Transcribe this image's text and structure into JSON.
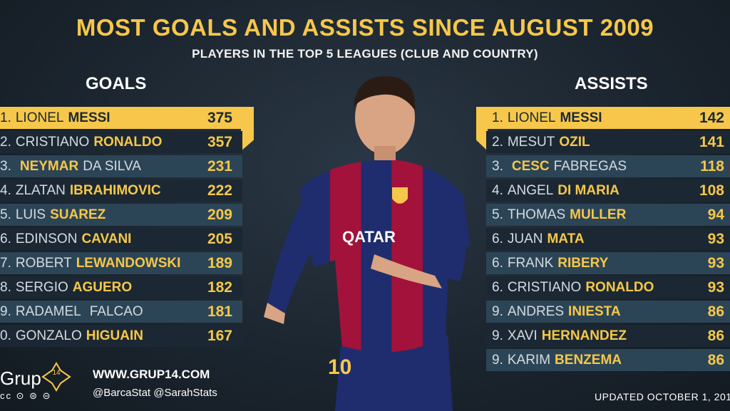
{
  "title": "MOST GOALS AND ASSISTS SINCE AUGUST 2009",
  "subtitle": "PLAYERS IN THE TOP 5 LEAGUES (CLUB AND COUNTRY)",
  "goals_heading": "GOALS",
  "assists_heading": "ASSISTS",
  "goals": [
    {
      "rank": "1.",
      "first": "LIONEL",
      "last": "MESSI",
      "value": "375"
    },
    {
      "rank": "2.",
      "first": "CRISTIANO",
      "last": "RONALDO",
      "value": "357"
    },
    {
      "rank": "3.",
      "first": "",
      "last": "NEYMAR",
      "suffix": "DA SILVA",
      "value": "231"
    },
    {
      "rank": "4.",
      "first": "ZLATAN",
      "last": "IBRAHIMOVIC",
      "value": "222"
    },
    {
      "rank": "5.",
      "first": "LUIS",
      "last": "SUAREZ",
      "value": "209"
    },
    {
      "rank": "6.",
      "first": "EDINSON",
      "last": "CAVANI",
      "value": "205"
    },
    {
      "rank": "7.",
      "first": "ROBERT",
      "last": "LEWANDOWSKI",
      "value": "189"
    },
    {
      "rank": "8.",
      "first": "SERGIO",
      "last": "AGUERO",
      "value": "182"
    },
    {
      "rank": "9.",
      "first": "RADAMEL",
      "last": "",
      "suffix": "FALCAO",
      "value": "181"
    },
    {
      "rank": "0.",
      "first": "GONZALO",
      "last": "HIGUAIN",
      "value": "167"
    }
  ],
  "assists": [
    {
      "rank": "1.",
      "first": "LIONEL",
      "last": "MESSI",
      "value": "142"
    },
    {
      "rank": "2.",
      "first": "MESUT",
      "last": "OZIL",
      "value": "141"
    },
    {
      "rank": "3.",
      "first": "",
      "last": "CESC",
      "suffix": "FABREGAS",
      "value": "118"
    },
    {
      "rank": "4.",
      "first": "ANGEL",
      "last": "DI MARIA",
      "value": "108"
    },
    {
      "rank": "5.",
      "first": "THOMAS",
      "last": "MULLER",
      "value": "94"
    },
    {
      "rank": "6.",
      "first": "JUAN",
      "last": "MATA",
      "value": "93"
    },
    {
      "rank": "6.",
      "first": "FRANK",
      "last": "RIBERY",
      "value": "93"
    },
    {
      "rank": "6.",
      "first": "CRISTIANO",
      "last": "RONALDO",
      "value": "93"
    },
    {
      "rank": "9.",
      "first": "ANDRES",
      "last": "INIESTA",
      "value": "86"
    },
    {
      "rank": "9.",
      "first": "XAVI",
      "last": "HERNANDEZ",
      "value": "86"
    },
    {
      "rank": "9.",
      "first": "KARIM",
      "last": "BENZEMA",
      "value": "86"
    }
  ],
  "footer": {
    "brand": "Grup",
    "brand_number": "14",
    "license": "cc ⊙ ⊜ ⊝",
    "website": "WWW.GRUP14.COM",
    "handles": "@BarcaStat  @SarahStats",
    "updated": "UPDATED OCTOBER 1, 201"
  },
  "colors": {
    "accent": "#f6c74a",
    "row_dark": "#1b2833",
    "row_light": "#2c4556",
    "background": "#1c2630"
  },
  "player_image": "footballer-in-barcelona-kit"
}
